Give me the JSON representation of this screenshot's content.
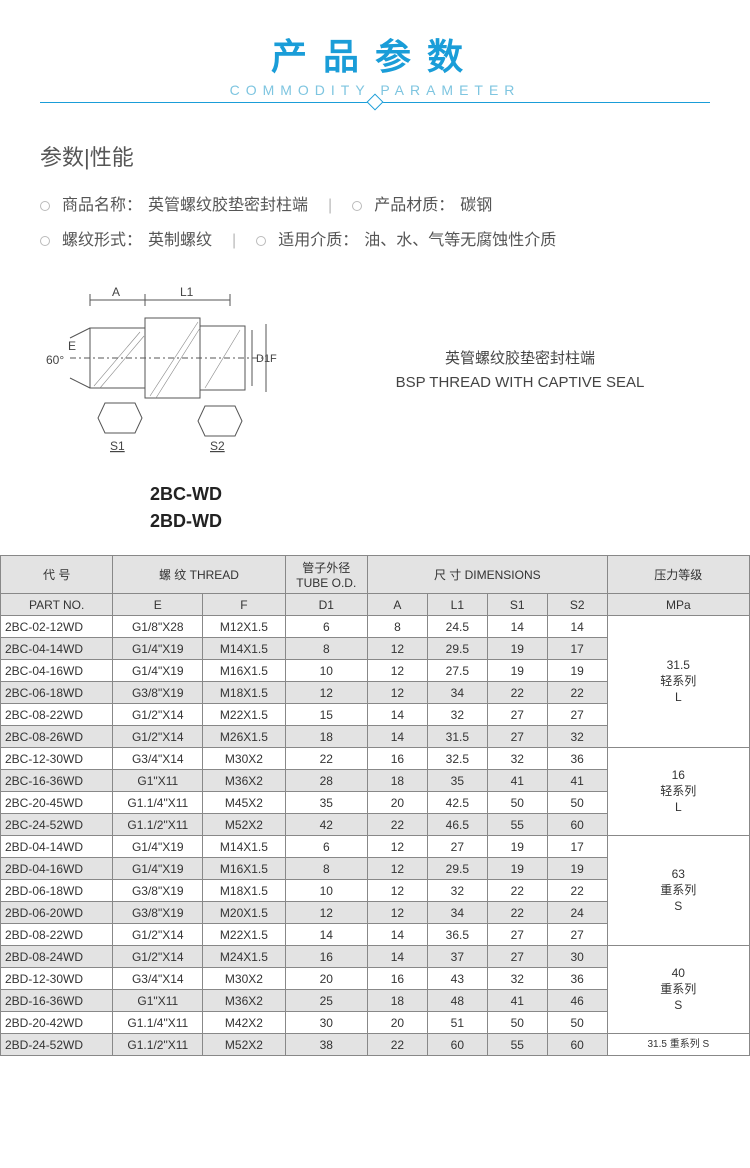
{
  "header": {
    "title_cn": "产品参数",
    "title_en": "COMMODITY PARAMETER",
    "title_color": "#1a9dd8",
    "sub_color": "#7ec5e0"
  },
  "section_title": "参数|性能",
  "specs": {
    "name_label": "商品名称：",
    "name_value": "英管螺纹胶垫密封柱端",
    "material_label": "产品材质：",
    "material_value": "碳钢",
    "thread_label": "螺纹形式：",
    "thread_value": "英制螺纹",
    "media_label": "适用介质：",
    "media_value": "油、水、气等无腐蚀性介质"
  },
  "diagram": {
    "labels": {
      "A": "A",
      "L1": "L1",
      "E": "E",
      "D1": "D1",
      "F": "F",
      "S1": "S1",
      "S2": "S2",
      "angle": "60°"
    },
    "caption_cn": "英管螺纹胶垫密封柱端",
    "caption_en": "BSP THREAD WITH CAPTIVE SEAL"
  },
  "model_codes": [
    "2BC-WD",
    "2BD-WD"
  ],
  "table": {
    "header_groups": {
      "part_cn": "代  号",
      "part_en": "PART  NO.",
      "thread_cn": "螺  纹  THREAD",
      "tube_cn": "管子外径 TUBE O.D.",
      "dim_cn": "尺  寸     DIMENSIONS",
      "press_cn": "压力等级",
      "press_unit": "MPa"
    },
    "cols": [
      "E",
      "F",
      "D1",
      "A",
      "L1",
      "S1",
      "S2"
    ],
    "pressure_groups": [
      {
        "rows": 6,
        "value": "31.5",
        "series_cn": "轻系列",
        "series_en": "L"
      },
      {
        "rows": 4,
        "value": "16",
        "series_cn": "轻系列",
        "series_en": "L"
      },
      {
        "rows": 5,
        "value": "63",
        "series_cn": "重系列",
        "series_en": "S"
      },
      {
        "rows": 4,
        "value": "40",
        "series_cn": "重系列",
        "series_en": "S"
      },
      {
        "rows": 1,
        "value": "31.5 重系列 S",
        "series_cn": "",
        "series_en": ""
      }
    ],
    "rows": [
      [
        "2BC-02-12WD",
        "G1/8\"X28",
        "M12X1.5",
        "6",
        "8",
        "24.5",
        "14",
        "14"
      ],
      [
        "2BC-04-14WD",
        "G1/4\"X19",
        "M14X1.5",
        "8",
        "12",
        "29.5",
        "19",
        "17"
      ],
      [
        "2BC-04-16WD",
        "G1/4\"X19",
        "M16X1.5",
        "10",
        "12",
        "27.5",
        "19",
        "19"
      ],
      [
        "2BC-06-18WD",
        "G3/8\"X19",
        "M18X1.5",
        "12",
        "12",
        "34",
        "22",
        "22"
      ],
      [
        "2BC-08-22WD",
        "G1/2\"X14",
        "M22X1.5",
        "15",
        "14",
        "32",
        "27",
        "27"
      ],
      [
        "2BC-08-26WD",
        "G1/2\"X14",
        "M26X1.5",
        "18",
        "14",
        "31.5",
        "27",
        "32"
      ],
      [
        "2BC-12-30WD",
        "G3/4\"X14",
        "M30X2",
        "22",
        "16",
        "32.5",
        "32",
        "36"
      ],
      [
        "2BC-16-36WD",
        "G1\"X11",
        "M36X2",
        "28",
        "18",
        "35",
        "41",
        "41"
      ],
      [
        "2BC-20-45WD",
        "G1.1/4\"X11",
        "M45X2",
        "35",
        "20",
        "42.5",
        "50",
        "50"
      ],
      [
        "2BC-24-52WD",
        "G1.1/2\"X11",
        "M52X2",
        "42",
        "22",
        "46.5",
        "55",
        "60"
      ],
      [
        "2BD-04-14WD",
        "G1/4\"X19",
        "M14X1.5",
        "6",
        "12",
        "27",
        "19",
        "17"
      ],
      [
        "2BD-04-16WD",
        "G1/4\"X19",
        "M16X1.5",
        "8",
        "12",
        "29.5",
        "19",
        "19"
      ],
      [
        "2BD-06-18WD",
        "G3/8\"X19",
        "M18X1.5",
        "10",
        "12",
        "32",
        "22",
        "22"
      ],
      [
        "2BD-06-20WD",
        "G3/8\"X19",
        "M20X1.5",
        "12",
        "12",
        "34",
        "22",
        "24"
      ],
      [
        "2BD-08-22WD",
        "G1/2\"X14",
        "M22X1.5",
        "14",
        "14",
        "36.5",
        "27",
        "27"
      ],
      [
        "2BD-08-24WD",
        "G1/2\"X14",
        "M24X1.5",
        "16",
        "14",
        "37",
        "27",
        "30"
      ],
      [
        "2BD-12-30WD",
        "G3/4\"X14",
        "M30X2",
        "20",
        "16",
        "43",
        "32",
        "36"
      ],
      [
        "2BD-16-36WD",
        "G1\"X11",
        "M36X2",
        "25",
        "18",
        "48",
        "41",
        "46"
      ],
      [
        "2BD-20-42WD",
        "G1.1/4\"X11",
        "M42X2",
        "30",
        "20",
        "51",
        "50",
        "50"
      ],
      [
        "2BD-24-52WD",
        "G1.1/2\"X11",
        "M52X2",
        "38",
        "22",
        "60",
        "55",
        "60"
      ]
    ],
    "col_widths_pct": [
      15,
      12,
      11,
      11,
      8,
      8,
      8,
      8,
      19
    ],
    "header_bg": "#e3e3e3",
    "border_color": "#888"
  }
}
